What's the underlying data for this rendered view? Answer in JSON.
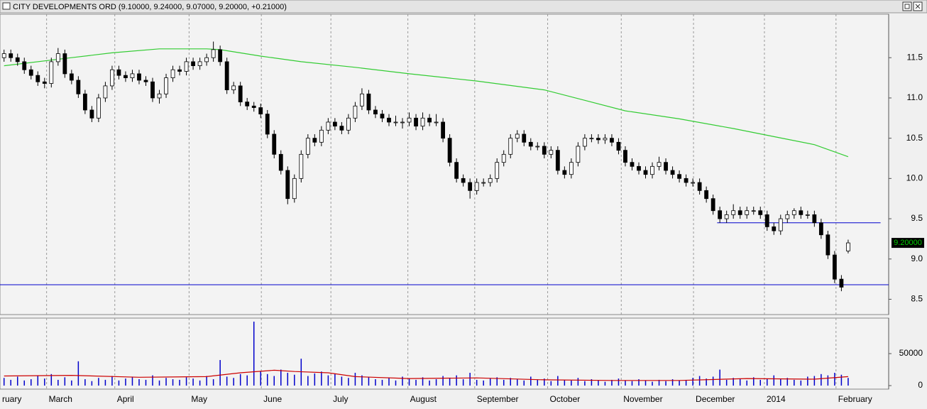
{
  "window": {
    "title": "CITY DEVELOPMENTS ORD (9.10000, 9.24000, 9.07000, 9.20000, +0.21000)"
  },
  "chart_data": [
    {
      "type": "candlestick",
      "up_color": "#ffffff",
      "down_color": "#000000",
      "xlim": [
        -0.6,
        131
      ],
      "ylim": [
        8.31,
        12.04
      ],
      "yticks": [
        8.5,
        {
          "value": 9,
          "label": "9.0"
        },
        9.5,
        {
          "value": 10,
          "label": "10.0"
        },
        10.5,
        {
          "value": 11,
          "label": "11.0"
        },
        11.5
      ],
      "ohlc": [
        [
          11.5,
          11.6,
          11.45,
          11.55
        ],
        [
          11.55,
          11.6,
          11.45,
          11.5
        ],
        [
          11.5,
          11.55,
          11.4,
          11.45
        ],
        [
          11.45,
          11.5,
          11.3,
          11.35
        ],
        [
          11.35,
          11.4,
          11.23,
          11.28
        ],
        [
          11.28,
          11.33,
          11.15,
          11.2
        ],
        [
          11.2,
          11.25,
          11.12,
          11.18
        ],
        [
          11.18,
          11.5,
          11.13,
          11.45
        ],
        [
          11.45,
          11.62,
          11.4,
          11.55
        ],
        [
          11.55,
          11.6,
          11.25,
          11.3
        ],
        [
          11.3,
          11.35,
          11.17,
          11.22
        ],
        [
          11.22,
          11.27,
          11.0,
          11.05
        ],
        [
          11.05,
          11.1,
          10.8,
          10.85
        ],
        [
          10.85,
          10.9,
          10.7,
          10.75
        ],
        [
          10.75,
          11.05,
          10.7,
          11.0
        ],
        [
          11.0,
          11.2,
          10.95,
          11.15
        ],
        [
          11.15,
          11.4,
          11.1,
          11.35
        ],
        [
          11.35,
          11.4,
          11.23,
          11.28
        ],
        [
          11.28,
          11.33,
          11.2,
          11.25
        ],
        [
          11.25,
          11.35,
          11.2,
          11.3
        ],
        [
          11.3,
          11.35,
          11.17,
          11.22
        ],
        [
          11.22,
          11.27,
          11.15,
          11.2
        ],
        [
          11.2,
          11.25,
          10.95,
          11.0
        ],
        [
          11.0,
          11.1,
          10.93,
          11.05
        ],
        [
          11.05,
          11.3,
          11.0,
          11.25
        ],
        [
          11.25,
          11.4,
          11.2,
          11.35
        ],
        [
          11.35,
          11.4,
          11.28,
          11.33
        ],
        [
          11.33,
          11.5,
          11.28,
          11.45
        ],
        [
          11.45,
          11.5,
          11.35,
          11.4
        ],
        [
          11.4,
          11.5,
          11.35,
          11.45
        ],
        [
          11.45,
          11.55,
          11.4,
          11.5
        ],
        [
          11.5,
          11.7,
          11.45,
          11.6
        ],
        [
          11.6,
          11.65,
          11.4,
          11.45
        ],
        [
          11.45,
          11.5,
          11.05,
          11.1
        ],
        [
          11.1,
          11.2,
          11.05,
          11.15
        ],
        [
          11.15,
          11.2,
          10.9,
          10.95
        ],
        [
          10.95,
          11.0,
          10.85,
          10.9
        ],
        [
          10.9,
          10.95,
          10.83,
          10.88
        ],
        [
          10.88,
          10.93,
          10.75,
          10.8
        ],
        [
          10.8,
          10.85,
          10.5,
          10.55
        ],
        [
          10.55,
          10.6,
          10.25,
          10.3
        ],
        [
          10.3,
          10.35,
          10.05,
          10.1
        ],
        [
          10.1,
          10.15,
          9.68,
          9.75
        ],
        [
          9.75,
          10.05,
          9.7,
          10.0
        ],
        [
          10.0,
          10.35,
          9.95,
          10.3
        ],
        [
          10.3,
          10.55,
          10.25,
          10.5
        ],
        [
          10.5,
          10.55,
          10.4,
          10.45
        ],
        [
          10.45,
          10.65,
          10.4,
          10.6
        ],
        [
          10.6,
          10.75,
          10.55,
          10.7
        ],
        [
          10.7,
          10.75,
          10.6,
          10.65
        ],
        [
          10.65,
          10.7,
          10.55,
          10.6
        ],
        [
          10.6,
          10.8,
          10.55,
          10.75
        ],
        [
          10.75,
          10.95,
          10.7,
          10.9
        ],
        [
          10.9,
          11.12,
          10.85,
          11.05
        ],
        [
          11.05,
          11.1,
          10.8,
          10.85
        ],
        [
          10.85,
          10.9,
          10.75,
          10.8
        ],
        [
          10.8,
          10.85,
          10.7,
          10.75
        ],
        [
          10.75,
          10.8,
          10.65,
          10.7
        ],
        [
          10.7,
          10.78,
          10.65,
          10.7
        ],
        [
          10.7,
          10.75,
          10.62,
          10.7
        ],
        [
          10.7,
          10.82,
          10.65,
          10.75
        ],
        [
          10.75,
          10.8,
          10.6,
          10.65
        ],
        [
          10.65,
          10.82,
          10.6,
          10.75
        ],
        [
          10.75,
          10.8,
          10.65,
          10.7
        ],
        [
          10.7,
          10.8,
          10.65,
          10.7
        ],
        [
          10.7,
          10.75,
          10.45,
          10.5
        ],
        [
          10.5,
          10.55,
          10.15,
          10.2
        ],
        [
          10.2,
          10.25,
          9.95,
          10.0
        ],
        [
          10.0,
          10.05,
          9.9,
          9.95
        ],
        [
          9.95,
          10.0,
          9.75,
          9.85
        ],
        [
          9.85,
          10.0,
          9.8,
          9.95
        ],
        [
          9.95,
          10.0,
          9.9,
          9.95
        ],
        [
          9.95,
          10.05,
          9.9,
          10.0
        ],
        [
          10.0,
          10.25,
          9.95,
          10.2
        ],
        [
          10.2,
          10.35,
          10.15,
          10.3
        ],
        [
          10.3,
          10.55,
          10.25,
          10.5
        ],
        [
          10.5,
          10.6,
          10.45,
          10.55
        ],
        [
          10.55,
          10.6,
          10.4,
          10.45
        ],
        [
          10.45,
          10.5,
          10.35,
          10.4
        ],
        [
          10.4,
          10.45,
          10.35,
          10.4
        ],
        [
          10.4,
          10.45,
          10.25,
          10.3
        ],
        [
          10.3,
          10.4,
          10.25,
          10.35
        ],
        [
          10.35,
          10.4,
          10.05,
          10.1
        ],
        [
          10.1,
          10.15,
          10.0,
          10.05
        ],
        [
          10.05,
          10.25,
          10.0,
          10.2
        ],
        [
          10.2,
          10.45,
          10.15,
          10.4
        ],
        [
          10.4,
          10.55,
          10.35,
          10.5
        ],
        [
          10.5,
          10.55,
          10.45,
          10.5
        ],
        [
          10.5,
          10.55,
          10.43,
          10.48
        ],
        [
          10.48,
          10.55,
          10.43,
          10.5
        ],
        [
          10.5,
          10.55,
          10.4,
          10.45
        ],
        [
          10.45,
          10.5,
          10.3,
          10.35
        ],
        [
          10.35,
          10.4,
          10.15,
          10.2
        ],
        [
          10.2,
          10.25,
          10.1,
          10.15
        ],
        [
          10.15,
          10.2,
          10.05,
          10.1
        ],
        [
          10.1,
          10.15,
          10.0,
          10.05
        ],
        [
          10.05,
          10.2,
          10.0,
          10.15
        ],
        [
          10.15,
          10.27,
          10.1,
          10.2
        ],
        [
          10.2,
          10.25,
          10.05,
          10.1
        ],
        [
          10.1,
          10.15,
          10.0,
          10.05
        ],
        [
          10.05,
          10.1,
          9.95,
          10.0
        ],
        [
          10.0,
          10.05,
          9.9,
          9.95
        ],
        [
          9.95,
          10.0,
          9.9,
          9.95
        ],
        [
          9.95,
          10.0,
          9.8,
          9.85
        ],
        [
          9.85,
          9.9,
          9.7,
          9.75
        ],
        [
          9.75,
          9.8,
          9.55,
          9.6
        ],
        [
          9.6,
          9.65,
          9.45,
          9.5
        ],
        [
          9.5,
          9.6,
          9.45,
          9.55
        ],
        [
          9.55,
          9.68,
          9.5,
          9.6
        ],
        [
          9.6,
          9.65,
          9.5,
          9.55
        ],
        [
          9.55,
          9.65,
          9.5,
          9.6
        ],
        [
          9.6,
          9.65,
          9.55,
          9.6
        ],
        [
          9.6,
          9.65,
          9.5,
          9.55
        ],
        [
          9.55,
          9.6,
          9.35,
          9.4
        ],
        [
          9.4,
          9.45,
          9.3,
          9.35
        ],
        [
          9.35,
          9.55,
          9.3,
          9.5
        ],
        [
          9.5,
          9.6,
          9.45,
          9.55
        ],
        [
          9.55,
          9.63,
          9.5,
          9.6
        ],
        [
          9.6,
          9.65,
          9.5,
          9.55
        ],
        [
          9.55,
          9.6,
          9.5,
          9.55
        ],
        [
          9.55,
          9.6,
          9.4,
          9.45
        ],
        [
          9.45,
          9.5,
          9.25,
          9.3
        ],
        [
          9.3,
          9.35,
          9.0,
          9.05
        ],
        [
          9.05,
          9.1,
          8.7,
          8.75
        ],
        [
          8.75,
          8.8,
          8.6,
          8.65
        ],
        [
          9.1,
          9.24,
          9.07,
          9.2
        ]
      ],
      "ma": {
        "color": "#33cc33",
        "x": [
          0,
          10,
          16,
          23,
          30,
          32,
          38,
          44,
          52,
          60,
          70,
          80,
          86,
          92,
          100,
          108,
          114,
          120,
          125
        ],
        "values": [
          11.4,
          11.5,
          11.56,
          11.61,
          11.61,
          11.6,
          11.52,
          11.45,
          11.38,
          11.3,
          11.21,
          11.1,
          10.97,
          10.84,
          10.74,
          10.62,
          10.52,
          10.42,
          10.27
        ]
      },
      "hlines": [
        {
          "value": 9.45,
          "from": 105.6,
          "to": 129.8,
          "color": "#0000cc"
        },
        {
          "value": 8.68,
          "from": -0.6,
          "to": 131,
          "color": "#0000cc"
        }
      ],
      "last": {
        "value": 9.2,
        "label": "9.20000",
        "color": "#00cc00"
      }
    },
    {
      "type": "bar",
      "color": "#0000cc",
      "xlim": [
        -0.6,
        131
      ],
      "ylim": [
        -5500,
        105500
      ],
      "yticks": [
        0,
        50000
      ],
      "xticks": [
        {
          "value": -0.6,
          "label": "ruary"
        },
        {
          "value": 6.3,
          "label": "March"
        },
        {
          "value": 16.4,
          "label": "April"
        },
        {
          "value": 27.4,
          "label": "May"
        },
        {
          "value": 38.1,
          "label": "June"
        },
        {
          "value": 48.4,
          "label": "July"
        },
        {
          "value": 59.8,
          "label": "August"
        },
        {
          "value": 69.7,
          "label": "September"
        },
        {
          "value": 80.5,
          "label": "October"
        },
        {
          "value": 91.4,
          "label": "November"
        },
        {
          "value": 102.1,
          "label": "December"
        },
        {
          "value": 112.6,
          "label": "2014"
        },
        {
          "value": 123.2,
          "label": "February"
        }
      ],
      "values": [
        12000,
        9000,
        14000,
        8000,
        10000,
        16000,
        11000,
        18000,
        9000,
        13000,
        8000,
        38000,
        10000,
        7000,
        12000,
        9000,
        15000,
        8000,
        11000,
        14000,
        10000,
        9000,
        16000,
        8000,
        12000,
        10000,
        9000,
        13000,
        11000,
        8000,
        15000,
        10000,
        40000,
        14000,
        12000,
        18000,
        16000,
        100000,
        22000,
        18000,
        15000,
        25000,
        20000,
        17000,
        42000,
        15000,
        19000,
        22000,
        16000,
        18000,
        14000,
        12000,
        20000,
        16000,
        13000,
        10000,
        9000,
        12000,
        8000,
        14000,
        11000,
        9000,
        13000,
        8000,
        10000,
        15000,
        12000,
        16000,
        10000,
        20000,
        9000,
        8000,
        11000,
        13000,
        9000,
        12000,
        10000,
        8000,
        14000,
        9000,
        11000,
        7000,
        15000,
        9000,
        8000,
        12000,
        7000,
        10000,
        8000,
        6000,
        9000,
        11000,
        8000,
        7000,
        10000,
        8000,
        6000,
        9000,
        7000,
        10000,
        8000,
        9000,
        12000,
        15000,
        11000,
        14000,
        25000,
        9000,
        12000,
        10000,
        8000,
        13000,
        9000,
        11000,
        16000,
        10000,
        12000,
        9000,
        8000,
        14000,
        15000,
        18000,
        16000,
        20000,
        17000,
        12000
      ],
      "ma": {
        "color": "#cc0000",
        "x": [
          0,
          10,
          20,
          30,
          35,
          40,
          43,
          48,
          52,
          60,
          70,
          80,
          90,
          100,
          110,
          120,
          125
        ],
        "values": [
          15000,
          16000,
          13000,
          14000,
          20000,
          24000,
          22000,
          20000,
          14000,
          11000,
          12000,
          9000,
          8000,
          8000,
          11000,
          10000,
          14000
        ]
      }
    }
  ]
}
